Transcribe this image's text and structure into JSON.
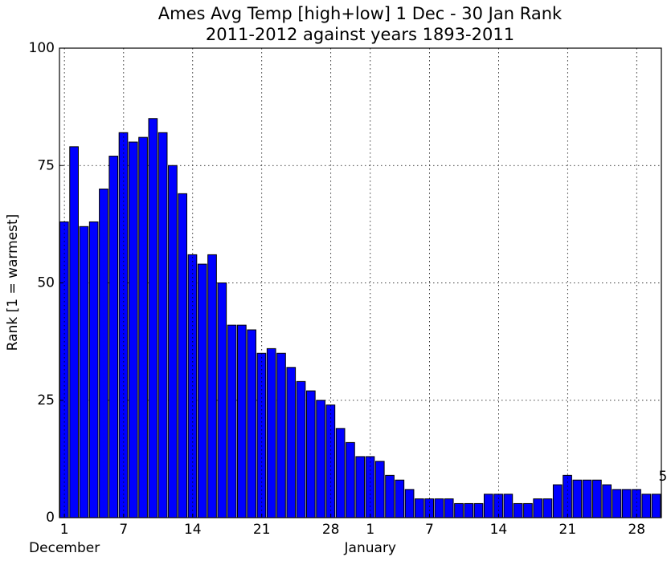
{
  "chart_data": {
    "type": "bar",
    "title": "Ames Avg Temp [high+low] 1 Dec - 30 Jan Rank",
    "subtitle": "2011-2012 against years 1893-2011",
    "y_label": "Rank [1 = warmest]",
    "months": [
      "December",
      "January"
    ],
    "categories": [
      "1",
      null,
      null,
      null,
      null,
      null,
      "7",
      null,
      null,
      null,
      null,
      null,
      null,
      "14",
      null,
      null,
      null,
      null,
      null,
      null,
      "21",
      null,
      null,
      null,
      null,
      null,
      null,
      "28",
      null,
      null,
      null,
      "1",
      null,
      null,
      null,
      null,
      null,
      "7",
      null,
      null,
      null,
      null,
      null,
      null,
      "14",
      null,
      null,
      null,
      null,
      null,
      null,
      "21",
      null,
      null,
      null,
      null,
      null,
      null,
      "28",
      null,
      null
    ],
    "values": [
      63,
      79,
      62,
      63,
      70,
      77,
      82,
      80,
      81,
      85,
      82,
      75,
      69,
      56,
      54,
      56,
      50,
      41,
      41,
      40,
      35,
      36,
      35,
      32,
      29,
      27,
      25,
      24,
      19,
      16,
      13,
      13,
      12,
      9,
      8,
      6,
      4,
      4,
      4,
      4,
      3,
      3,
      3,
      5,
      5,
      5,
      3,
      3,
      4,
      4,
      7,
      9,
      8,
      8,
      8,
      7,
      6,
      6,
      6,
      5,
      5
    ],
    "color": "#0000ff",
    "ylim": [
      0,
      100
    ],
    "yticks": [
      0,
      25,
      50,
      75,
      100
    ],
    "grid": true
  }
}
